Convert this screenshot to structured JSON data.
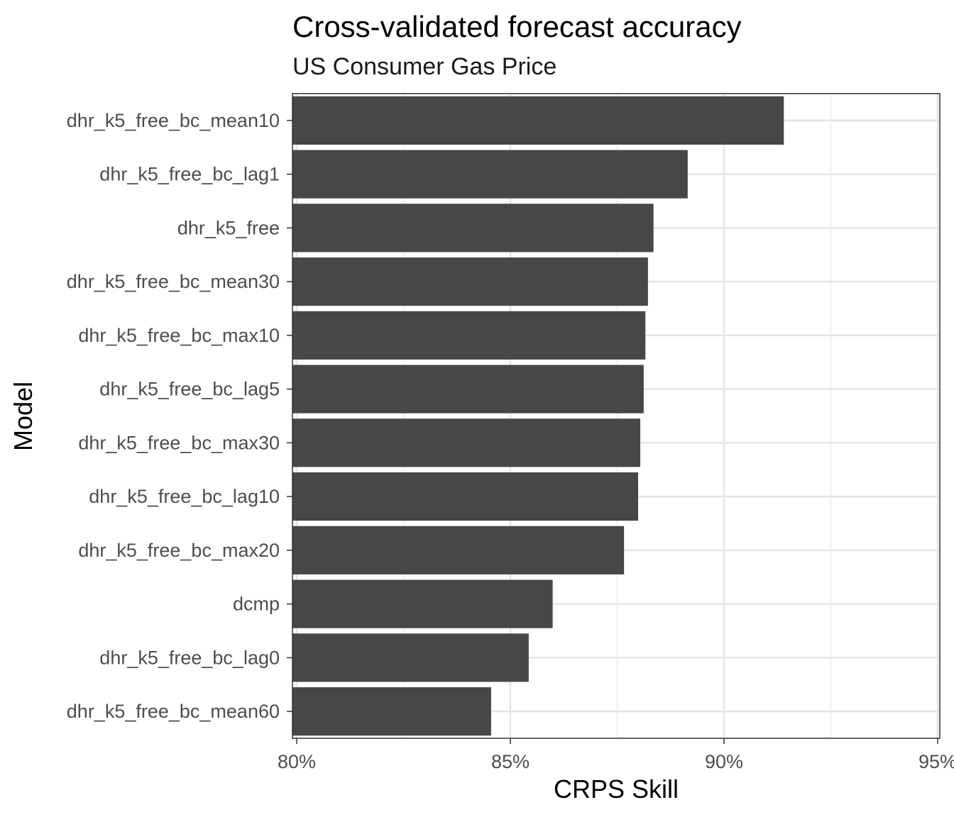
{
  "chart_data": {
    "type": "bar",
    "orientation": "horizontal",
    "title": "Cross-validated forecast accuracy",
    "subtitle": "US Consumer Gas Price",
    "xlabel": "CRPS Skill",
    "ylabel": "Model",
    "xlim": [
      79.9,
      95.05
    ],
    "xticks": [
      80,
      85,
      90,
      95
    ],
    "xtick_labels": [
      "80%",
      "85%",
      "90%",
      "95%"
    ],
    "grid": true,
    "bar_color": "#474747",
    "categories": [
      "dhr_k5_free_bc_mean10",
      "dhr_k5_free_bc_lag1",
      "dhr_k5_free",
      "dhr_k5_free_bc_mean30",
      "dhr_k5_free_bc_max10",
      "dhr_k5_free_bc_lag5",
      "dhr_k5_free_bc_max30",
      "dhr_k5_free_bc_lag10",
      "dhr_k5_free_bc_max20",
      "dcmp",
      "dhr_k5_free_bc_lag0",
      "dhr_k5_free_bc_mean60"
    ],
    "values": [
      91.4,
      89.15,
      88.35,
      88.22,
      88.16,
      88.12,
      88.04,
      87.99,
      87.66,
      85.99,
      85.43,
      84.55
    ]
  }
}
